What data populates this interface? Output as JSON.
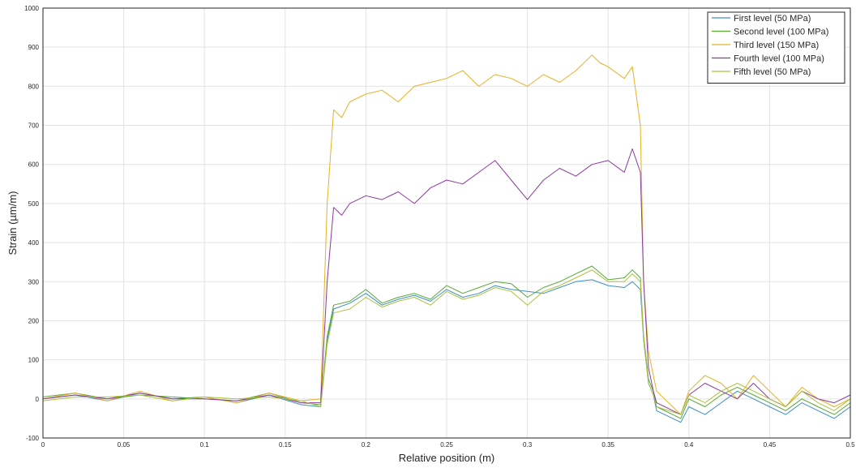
{
  "chart_data": {
    "type": "line",
    "title": "",
    "xlabel": "Relative position (m)",
    "ylabel": "Strain (µm/m)",
    "xlim": [
      0,
      0.5
    ],
    "ylim": [
      -100,
      1000
    ],
    "xticks": [
      0,
      0.05,
      0.1,
      0.15,
      0.2,
      0.25,
      0.3,
      0.35,
      0.4,
      0.45,
      0.5
    ],
    "xtick_labels": [
      "0",
      "0.05",
      "0.1",
      "0.15",
      "0.2",
      "0.25",
      "0.3",
      "0.35",
      "0.4",
      "0.45",
      "0.5"
    ],
    "yticks": [
      -100,
      0,
      100,
      200,
      300,
      400,
      500,
      600,
      700,
      800,
      900,
      1000
    ],
    "ytick_labels": [
      "-100",
      "0",
      "100",
      "200",
      "300",
      "400",
      "500",
      "600",
      "700",
      "800",
      "900",
      "1000"
    ],
    "grid": true,
    "legend_position": "top-right",
    "series": [
      {
        "name": "First level (50 MPa)",
        "color": "#3d8ec9",
        "x": [
          0,
          0.02,
          0.04,
          0.06,
          0.08,
          0.1,
          0.12,
          0.14,
          0.16,
          0.172,
          0.176,
          0.18,
          0.19,
          0.2,
          0.21,
          0.22,
          0.23,
          0.24,
          0.25,
          0.26,
          0.27,
          0.28,
          0.29,
          0.3,
          0.31,
          0.32,
          0.33,
          0.34,
          0.35,
          0.36,
          0.365,
          0.37,
          0.372,
          0.375,
          0.378,
          0.38,
          0.395,
          0.4,
          0.41,
          0.42,
          0.43,
          0.44,
          0.45,
          0.46,
          0.47,
          0.48,
          0.49,
          0.5
        ],
        "y": [
          0,
          10,
          -5,
          15,
          0,
          5,
          -10,
          10,
          -15,
          -20,
          150,
          230,
          245,
          270,
          240,
          255,
          265,
          250,
          280,
          260,
          270,
          290,
          280,
          275,
          270,
          285,
          300,
          305,
          290,
          285,
          300,
          280,
          150,
          40,
          10,
          -30,
          -60,
          -20,
          -40,
          -10,
          20,
          0,
          -20,
          -40,
          -10,
          -30,
          -50,
          -20
        ]
      },
      {
        "name": "Second level (100 MPa)",
        "color": "#5aa832",
        "x": [
          0,
          0.02,
          0.04,
          0.06,
          0.08,
          0.1,
          0.12,
          0.14,
          0.16,
          0.172,
          0.176,
          0.18,
          0.19,
          0.2,
          0.21,
          0.22,
          0.23,
          0.24,
          0.25,
          0.26,
          0.27,
          0.28,
          0.29,
          0.3,
          0.31,
          0.32,
          0.33,
          0.34,
          0.35,
          0.36,
          0.365,
          0.37,
          0.372,
          0.375,
          0.378,
          0.38,
          0.395,
          0.4,
          0.41,
          0.42,
          0.43,
          0.44,
          0.45,
          0.46,
          0.47,
          0.48,
          0.49,
          0.5
        ],
        "y": [
          5,
          15,
          0,
          10,
          5,
          0,
          -5,
          15,
          -10,
          -15,
          160,
          240,
          250,
          280,
          245,
          260,
          270,
          255,
          290,
          270,
          285,
          300,
          295,
          260,
          285,
          300,
          320,
          340,
          305,
          310,
          330,
          310,
          160,
          50,
          20,
          -20,
          -50,
          0,
          -20,
          10,
          30,
          10,
          -10,
          -30,
          0,
          -20,
          -40,
          -10
        ]
      },
      {
        "name": "Third level (150 MPa)",
        "color": "#e8b024",
        "x": [
          0,
          0.02,
          0.04,
          0.06,
          0.08,
          0.1,
          0.12,
          0.14,
          0.16,
          0.172,
          0.176,
          0.18,
          0.185,
          0.19,
          0.2,
          0.21,
          0.22,
          0.23,
          0.24,
          0.25,
          0.26,
          0.27,
          0.28,
          0.29,
          0.3,
          0.31,
          0.32,
          0.33,
          0.34,
          0.345,
          0.35,
          0.36,
          0.365,
          0.37,
          0.372,
          0.375,
          0.378,
          0.38,
          0.395,
          0.4,
          0.41,
          0.42,
          0.43,
          0.44,
          0.45,
          0.46,
          0.47,
          0.48,
          0.49,
          0.5
        ],
        "y": [
          0,
          15,
          -5,
          20,
          -5,
          5,
          -10,
          15,
          -5,
          0,
          500,
          740,
          720,
          760,
          780,
          790,
          760,
          800,
          810,
          820,
          840,
          800,
          830,
          820,
          800,
          830,
          810,
          840,
          880,
          860,
          850,
          820,
          850,
          700,
          300,
          120,
          60,
          20,
          -40,
          20,
          60,
          40,
          0,
          60,
          20,
          -20,
          30,
          0,
          -20,
          0
        ]
      },
      {
        "name": "Fourth level (100 MPa)",
        "color": "#8b3a9e",
        "x": [
          0,
          0.02,
          0.04,
          0.06,
          0.08,
          0.1,
          0.12,
          0.14,
          0.16,
          0.172,
          0.176,
          0.18,
          0.185,
          0.19,
          0.2,
          0.21,
          0.22,
          0.23,
          0.24,
          0.25,
          0.26,
          0.27,
          0.28,
          0.29,
          0.3,
          0.31,
          0.32,
          0.33,
          0.34,
          0.35,
          0.36,
          0.365,
          0.37,
          0.372,
          0.375,
          0.378,
          0.38,
          0.395,
          0.4,
          0.41,
          0.42,
          0.43,
          0.44,
          0.45,
          0.46,
          0.47,
          0.48,
          0.49,
          0.5
        ],
        "y": [
          0,
          10,
          0,
          15,
          0,
          0,
          -5,
          10,
          -10,
          -10,
          300,
          490,
          470,
          500,
          520,
          510,
          530,
          500,
          540,
          560,
          550,
          580,
          610,
          560,
          510,
          560,
          590,
          570,
          600,
          610,
          580,
          640,
          580,
          300,
          80,
          20,
          -10,
          -40,
          10,
          40,
          20,
          0,
          40,
          0,
          -20,
          20,
          0,
          -10,
          10
        ]
      },
      {
        "name": "Fifth level (50 MPa)",
        "color": "#a9c43a",
        "x": [
          0,
          0.02,
          0.04,
          0.06,
          0.08,
          0.1,
          0.12,
          0.14,
          0.16,
          0.172,
          0.176,
          0.18,
          0.19,
          0.2,
          0.21,
          0.22,
          0.23,
          0.24,
          0.25,
          0.26,
          0.27,
          0.28,
          0.29,
          0.3,
          0.31,
          0.32,
          0.33,
          0.34,
          0.35,
          0.36,
          0.365,
          0.37,
          0.372,
          0.375,
          0.378,
          0.38,
          0.395,
          0.4,
          0.41,
          0.42,
          0.43,
          0.44,
          0.45,
          0.46,
          0.47,
          0.48,
          0.49,
          0.5
        ],
        "y": [
          -5,
          5,
          5,
          10,
          -5,
          5,
          0,
          5,
          -5,
          -20,
          140,
          220,
          230,
          260,
          235,
          250,
          260,
          240,
          275,
          255,
          265,
          285,
          275,
          240,
          275,
          290,
          310,
          330,
          300,
          300,
          320,
          300,
          150,
          40,
          10,
          -20,
          -40,
          10,
          -10,
          20,
          40,
          20,
          0,
          -20,
          20,
          -10,
          -30,
          0
        ]
      }
    ]
  }
}
